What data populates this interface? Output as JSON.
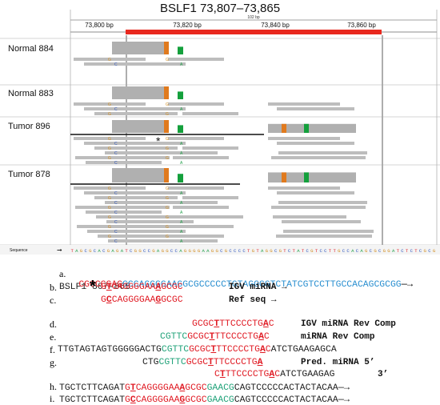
{
  "igv": {
    "title": "BSLF1 73,807–73,865",
    "ruler": {
      "span_label": "102 bp",
      "ticks": [
        "73,800 bp",
        "73,820 bp",
        "73,840 bp",
        "73,860 bp"
      ]
    },
    "samples": [
      "Normal 884",
      "Normal 883",
      "Tumor 896",
      "Tumor 878"
    ],
    "sequence_label": "Sequence",
    "reference_sequence": "TAGCGCACGAGATCGGCCGAGGCCAGGGGAAGGCGCCCCTGTAGGCGTCTATCGTCCTTGCCACAGCGCGGATCTCTCGCG",
    "colors": {
      "A": "#22a04a",
      "C": "#2a52be",
      "G": "#d28c1e",
      "T": "#e01b24",
      "read": "#bdbdbd",
      "highlight": "#e8281e"
    }
  },
  "panel_a": {
    "letter": "a.",
    "title": "BSLF1 807-865",
    "sequence_red": "CGGCCGAG",
    "sequence_blue": "GCCAGGGGAAGGCGCCCCCTGTAGGCGTCTATCGTCCTTGCCACAGCGCGG",
    "arrow": "—→"
  },
  "lines": [
    {
      "letter": "b.",
      "star": "*",
      "seq_pre": "G",
      "seq_ul1": "T",
      "seq_mid": "CAGGGGAA",
      "seq_ul2": "A",
      "seq_post": "GCGC",
      "desc": "IGV miRNA",
      "arrow": "→"
    },
    {
      "letter": "c.",
      "seq_pre": "G",
      "seq_ul1": "C",
      "seq_mid": "CAGGGGAA",
      "seq_ul2": "G",
      "seq_post": "GCGC",
      "desc": "Ref seq",
      "arrow": "→"
    },
    {
      "letter": "d.",
      "seq_pre": "GCGC",
      "seq_ul1": "T",
      "seq_mid": "TTCCCCTG",
      "seq_ul2": "A",
      "seq_post": "C",
      "desc": "IGV miRNA Rev Comp"
    },
    {
      "letter": "e.",
      "seq_green": "CGTTC",
      "seq_pre": "GCGC",
      "seq_ul1": "T",
      "seq_mid": "TTCCCCTG",
      "seq_ul2": "A",
      "seq_post": "C",
      "desc": "miRNA Rev Comp"
    },
    {
      "letter": "f.",
      "seq_black": "TTGTAGTAGTGGGGGACTG",
      "seq_green": "CGTTC",
      "seq_pre": "GCGC",
      "seq_ul1": "T",
      "seq_mid": "TTCCCCTG",
      "seq_ul2": "A",
      "seq_post": "C",
      "seq_tail": "ATCTGAAGAGCA"
    },
    {
      "letter": "g.",
      "seq_black": "CTG",
      "seq_green": "CGTTC",
      "seq_pre": "GCGC",
      "seq_ul1": "T",
      "seq_mid": "TTCCCCTG",
      "seq_ul2": "A",
      "desc": "Pred. miRNA 5’"
    },
    {
      "seq_pre": "C",
      "seq_ul1": "T",
      "seq_mid": "TTCCCCTG",
      "seq_ul2": "A",
      "seq_post": "C",
      "seq_tail": "ATCTGAAGAG",
      "desc": "3’"
    },
    {
      "letter": "h.",
      "seq_black": "TGCTCTTCAGAT",
      "seq_pre": "G",
      "seq_ul1": "T",
      "seq_mid": "CAGGGGAA",
      "seq_ul2": "A",
      "seq_post": "GCGC",
      "seq_green": "GAACG",
      "seq_tail": "CAGTCCCCCACTACTACAA",
      "arrow": "—→"
    },
    {
      "letter": "i.",
      "seq_black": "TGCTCTTCAGAT",
      "seq_pre": "G",
      "seq_ul1": "C",
      "seq_mid": "CAGGGGAA",
      "seq_ul2": "G",
      "seq_post": "GCGC",
      "seq_green": "GAACG",
      "seq_tail": "CAGTCCCCCACTACTACAA",
      "arrow": "—→"
    }
  ]
}
